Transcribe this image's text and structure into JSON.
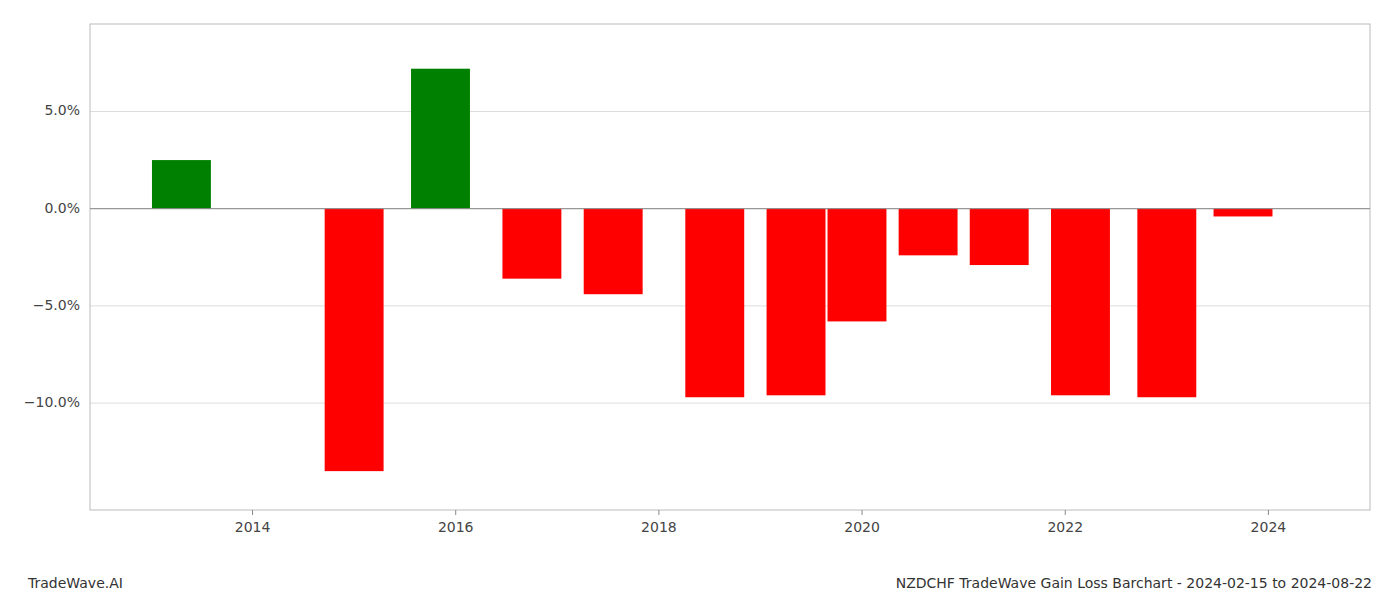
{
  "chart_data": {
    "type": "bar",
    "title": "NZDCHF TradeWave Gain Loss Barchart - 2024-02-15 to 2024-08-22",
    "annotations": [
      "TradeWave.AI"
    ],
    "x": [
      2013.3,
      2015.0,
      2015.85,
      2016.75,
      2017.55,
      2018.55,
      2019.35,
      2019.95,
      2020.65,
      2021.35,
      2022.15,
      2023.0,
      2023.75
    ],
    "values": [
      2.5,
      -13.5,
      7.2,
      -3.6,
      -4.4,
      -9.7,
      -9.6,
      -5.8,
      -2.4,
      -2.9,
      -9.6,
      -9.7,
      -0.4
    ],
    "colors": [
      "#008000",
      "#ff0000",
      "#008000",
      "#ff0000",
      "#ff0000",
      "#ff0000",
      "#ff0000",
      "#ff0000",
      "#ff0000",
      "#ff0000",
      "#ff0000",
      "#ff0000",
      "#ff0000"
    ],
    "xlim": [
      2012.4,
      2025.0
    ],
    "xticks": [
      2014,
      2016,
      2018,
      2020,
      2022,
      2024
    ],
    "ylim": [
      -15.5,
      9.5
    ],
    "yticks": [
      {
        "value": -10.0,
        "label": "−10.0%"
      },
      {
        "value": -5.0,
        "label": "−5.0%"
      },
      {
        "value": 0.0,
        "label": "0.0%"
      },
      {
        "value": 5.0,
        "label": "5.0%"
      }
    ],
    "grid": true
  }
}
